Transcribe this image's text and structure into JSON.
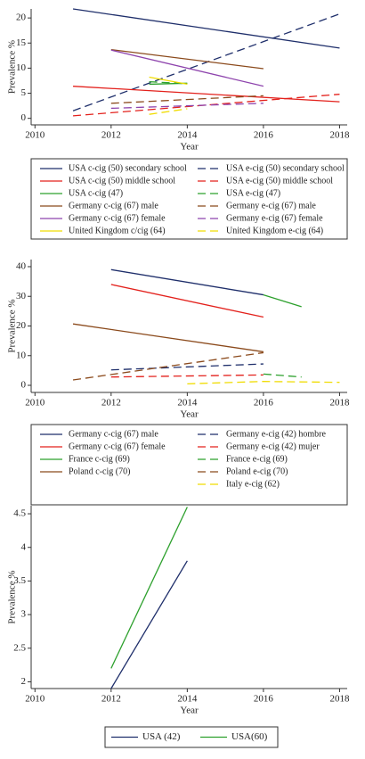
{
  "chart_data": [
    {
      "type": "line",
      "x_label": "Year",
      "y_label": "Prevalence %",
      "xlim": [
        2009.9,
        2018.2
      ],
      "xticks": [
        2010,
        2012,
        2014,
        2016,
        2018
      ],
      "ylim": [
        -1.3,
        21.8
      ],
      "yticks": [
        0,
        5,
        10,
        15,
        20
      ],
      "legend_layout": "by-style",
      "series": [
        {
          "name": "USA c-cig (50) secondary school",
          "color": "#1f2f6b",
          "style": "solid",
          "x": [
            2011,
            2018
          ],
          "values": [
            21.8,
            14
          ]
        },
        {
          "name": "USA e-cig (50) secondary school",
          "color": "#1f2f6b",
          "style": "dashed",
          "x": [
            2011,
            2018
          ],
          "values": [
            1.5,
            20.8
          ]
        },
        {
          "name": "USA c-cig (50) middle school",
          "color": "#e3211c",
          "style": "solid",
          "x": [
            2011,
            2018
          ],
          "values": [
            6.4,
            3.3
          ]
        },
        {
          "name": "USA e-cig (50) middle school",
          "color": "#e3211c",
          "style": "dashed",
          "x": [
            2011,
            2018
          ],
          "values": [
            0.5,
            4.8
          ]
        },
        {
          "name": "USA c-cig (47)",
          "color": "#2ca02c",
          "style": "solid",
          "x": [
            2013,
            2014
          ],
          "values": [
            6.8,
            7.0
          ]
        },
        {
          "name": "USA e-cig (47)",
          "color": "#2ca02c",
          "style": "dashed",
          "x": [
            2013,
            2014
          ],
          "values": [
            7.3,
            6.9
          ]
        },
        {
          "name": "Germany c-cig (67) male",
          "color": "#8b4a1c",
          "style": "solid",
          "x": [
            2012,
            2016
          ],
          "values": [
            13.7,
            9.9
          ]
        },
        {
          "name": "Germany e-cig (67) male",
          "color": "#8b4a1c",
          "style": "dashed",
          "x": [
            2012,
            2016
          ],
          "values": [
            3,
            4.5
          ]
        },
        {
          "name": "Germany c-cig (67) female",
          "color": "#8e44ad",
          "style": "solid",
          "x": [
            2012,
            2016
          ],
          "values": [
            13.6,
            6.4
          ]
        },
        {
          "name": "Germany e-cig (67) female",
          "color": "#8e44ad",
          "style": "dashed",
          "x": [
            2012,
            2016
          ],
          "values": [
            2,
            3
          ]
        },
        {
          "name": "United Kingdom c/cig (64)",
          "color": "#f0dc00",
          "style": "solid",
          "x": [
            2013,
            2014
          ],
          "values": [
            8.2,
            6.8
          ]
        },
        {
          "name": "United Kingdom e-cig (64)",
          "color": "#f0dc00",
          "style": "dashed",
          "x": [
            2013,
            2014
          ],
          "values": [
            0.8,
            1.9
          ]
        }
      ]
    },
    {
      "type": "line",
      "x_label": "Year",
      "y_label": "Prevalence %",
      "xlim": [
        2009.9,
        2018.2
      ],
      "xticks": [
        2010,
        2012,
        2014,
        2016,
        2018
      ],
      "ylim": [
        -2.4,
        42.4
      ],
      "yticks": [
        0,
        10,
        20,
        30,
        40
      ],
      "legend_layout": "by-style",
      "series": [
        {
          "name": "Germany c-cig (67) male",
          "color": "#1f2f6b",
          "style": "solid",
          "x": [
            2012,
            2016
          ],
          "values": [
            39,
            30.5
          ]
        },
        {
          "name": "Germany e-cig (42) hombre",
          "color": "#1f2f6b",
          "style": "dashed",
          "x": [
            2012,
            2016
          ],
          "values": [
            5.2,
            7.2
          ]
        },
        {
          "name": "Germany  c-cig (67) female",
          "color": "#e3211c",
          "style": "solid",
          "x": [
            2012,
            2016
          ],
          "values": [
            34,
            23
          ]
        },
        {
          "name": "Germany e-cig (42) mujer",
          "color": "#e3211c",
          "style": "dashed",
          "x": [
            2012,
            2016
          ],
          "values": [
            2.8,
            3.5
          ]
        },
        {
          "name": "France c-cig (69)",
          "color": "#2ca02c",
          "style": "solid",
          "x": [
            2016,
            2017
          ],
          "values": [
            30.5,
            26.5
          ]
        },
        {
          "name": "France e-cig (69)",
          "color": "#2ca02c",
          "style": "dashed",
          "x": [
            2016,
            2017
          ],
          "values": [
            3.8,
            2.8
          ]
        },
        {
          "name": "Poland c-cig (70)",
          "color": "#8b4a1c",
          "style": "solid",
          "x": [
            2011,
            2016
          ],
          "values": [
            20.7,
            11.3
          ]
        },
        {
          "name": "Poland e-cig (70)",
          "color": "#8b4a1c",
          "style": "dashed",
          "x": [
            2011,
            2016
          ],
          "values": [
            1.8,
            11
          ]
        },
        {
          "name": "Italy e-cig (62)",
          "color": "#f0dc00",
          "style": "dashed",
          "x": [
            2014,
            2016,
            2018
          ],
          "values": [
            0.5,
            1.3,
            1.0
          ]
        }
      ]
    },
    {
      "type": "line",
      "x_label": "Year",
      "y_label": "Prevalence %",
      "xlim": [
        2009.9,
        2018.2
      ],
      "xticks": [
        2010,
        2012,
        2014,
        2016,
        2018
      ],
      "ylim": [
        1.9,
        4.62
      ],
      "yticks": [
        2,
        2.5,
        3,
        3.5,
        4,
        4.5
      ],
      "legend_layout": "horizontal",
      "series": [
        {
          "name": "USA (42)",
          "color": "#1f2f6b",
          "style": "solid",
          "x": [
            2012,
            2014
          ],
          "values": [
            1.9,
            3.8
          ]
        },
        {
          "name": "USA(60)",
          "color": "#2ca02c",
          "style": "solid",
          "x": [
            2012,
            2014
          ],
          "values": [
            2.2,
            4.6
          ]
        }
      ]
    }
  ]
}
